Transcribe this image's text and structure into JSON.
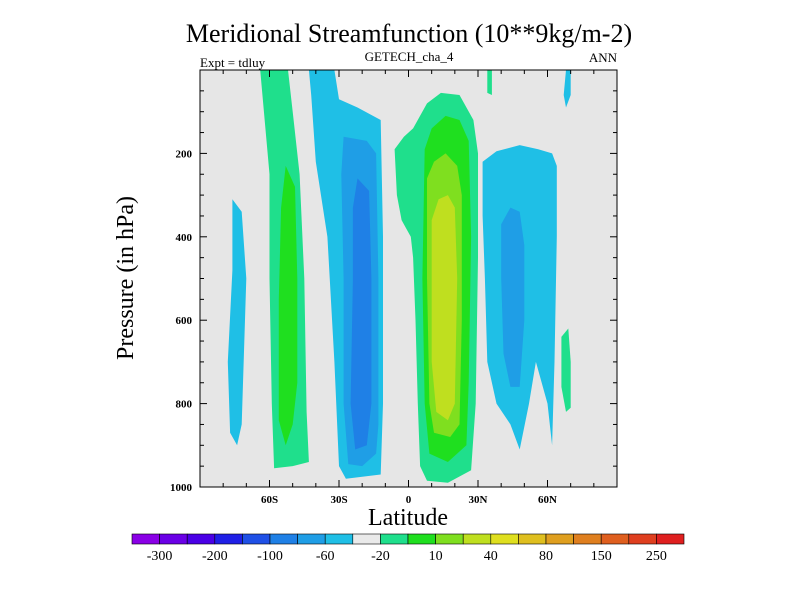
{
  "chart_data": {
    "type": "contour-filled",
    "title": "Meridional Streamfunction (10**9kg/m-2)",
    "subtitle": "GETECH_cha_4",
    "left_label": "Expt = tdluy",
    "right_label": "ANN",
    "xlabel": "Latitude",
    "ylabel": "Pressure (in hPa)",
    "xlim": [
      -90,
      90
    ],
    "ylim": [
      1000,
      0
    ],
    "x_ticks": [
      {
        "value": -60,
        "label": "60S"
      },
      {
        "value": -30,
        "label": "30S"
      },
      {
        "value": 0,
        "label": "0"
      },
      {
        "value": 30,
        "label": "30N"
      },
      {
        "value": 60,
        "label": "60N"
      }
    ],
    "y_ticks": [
      {
        "value": 200,
        "label": "200"
      },
      {
        "value": 400,
        "label": "400"
      },
      {
        "value": 600,
        "label": "600"
      },
      {
        "value": 800,
        "label": "800"
      },
      {
        "value": 1000,
        "label": "1000"
      }
    ],
    "background_color": "#e6e6e6",
    "colorbar": {
      "colors": [
        "#8a00e6",
        "#6a00e6",
        "#4a00e6",
        "#1f1fe6",
        "#1f50e6",
        "#1f80e6",
        "#1f9ee6",
        "#1fbfe6",
        "#eaeaea",
        "#1fdf8c",
        "#1fdf1f",
        "#7fdf1f",
        "#bfdf1f",
        "#dfdf1f",
        "#dfbf1f",
        "#df9f1f",
        "#df7f1f",
        "#df5f1f",
        "#df3f1f",
        "#df1f1f"
      ],
      "labels": [
        {
          "boundary": 1,
          "text": "-300"
        },
        {
          "boundary": 3,
          "text": "-200"
        },
        {
          "boundary": 5,
          "text": "-100"
        },
        {
          "boundary": 7,
          "text": "-60"
        },
        {
          "boundary": 9,
          "text": "-20"
        },
        {
          "boundary": 11,
          "text": "10"
        },
        {
          "boundary": 13,
          "text": "40"
        },
        {
          "boundary": 15,
          "text": "80"
        },
        {
          "boundary": 17,
          "text": "150"
        },
        {
          "boundary": 19,
          "text": "250"
        }
      ]
    },
    "regions": [
      {
        "name": "north-pole-cyan-thin",
        "color": "#1fbfe6",
        "pts": [
          [
            68,
            0
          ],
          [
            70,
            0
          ],
          [
            70,
            60
          ],
          [
            68,
            90
          ],
          [
            67,
            60
          ]
        ]
      },
      {
        "name": "north-pole-green-thin",
        "color": "#1fdf8c",
        "pts": [
          [
            34,
            0
          ],
          [
            36,
            0
          ],
          [
            36,
            60
          ],
          [
            34,
            55
          ]
        ]
      },
      {
        "name": "south-outer-cyan",
        "color": "#1fbfe6",
        "pts": [
          [
            -76,
            310
          ],
          [
            -72,
            340
          ],
          [
            -70,
            500
          ],
          [
            -72,
            850
          ],
          [
            -74,
            900
          ],
          [
            -77,
            870
          ],
          [
            -78,
            700
          ],
          [
            -76,
            480
          ]
        ]
      },
      {
        "name": "south-ferrel-green",
        "color": "#1fdf8c",
        "pts": [
          [
            -64,
            0
          ],
          [
            -52,
            0
          ],
          [
            -50,
            100
          ],
          [
            -47,
            250
          ],
          [
            -45,
            500
          ],
          [
            -44,
            820
          ],
          [
            -43,
            940
          ],
          [
            -50,
            950
          ],
          [
            -58,
            955
          ],
          [
            -59,
            800
          ],
          [
            -60,
            500
          ],
          [
            -60,
            250
          ]
        ]
      },
      {
        "name": "south-ferrel-core",
        "color": "#1fdf1f",
        "pts": [
          [
            -53,
            230
          ],
          [
            -49,
            280
          ],
          [
            -48,
            500
          ],
          [
            -48,
            750
          ],
          [
            -50,
            850
          ],
          [
            -53,
            900
          ],
          [
            -56,
            840
          ],
          [
            -56,
            550
          ],
          [
            -55,
            330
          ]
        ]
      },
      {
        "name": "south-hadley-cyan",
        "color": "#1fbfe6",
        "pts": [
          [
            -43,
            0
          ],
          [
            -32,
            0
          ],
          [
            -30,
            70
          ],
          [
            -22,
            90
          ],
          [
            -12,
            120
          ],
          [
            -11,
            400
          ],
          [
            -11,
            800
          ],
          [
            -12,
            970
          ],
          [
            -27,
            980
          ],
          [
            -30,
            950
          ],
          [
            -32,
            700
          ],
          [
            -35,
            400
          ],
          [
            -40,
            220
          ],
          [
            -42,
            60
          ]
        ]
      },
      {
        "name": "south-hadley-mid",
        "color": "#1f9ee6",
        "pts": [
          [
            -28,
            160
          ],
          [
            -18,
            170
          ],
          [
            -14,
            200
          ],
          [
            -13,
            500
          ],
          [
            -13,
            850
          ],
          [
            -14,
            920
          ],
          [
            -20,
            950
          ],
          [
            -26,
            945
          ],
          [
            -28,
            800
          ],
          [
            -28,
            500
          ],
          [
            -29,
            250
          ]
        ]
      },
      {
        "name": "south-hadley-core",
        "color": "#1f80e6",
        "pts": [
          [
            -22,
            260
          ],
          [
            -17,
            290
          ],
          [
            -16,
            500
          ],
          [
            -16,
            800
          ],
          [
            -18,
            900
          ],
          [
            -23,
            910
          ],
          [
            -25,
            800
          ],
          [
            -24,
            500
          ],
          [
            -24,
            330
          ]
        ]
      },
      {
        "name": "equator-green",
        "color": "#1fdf8c",
        "pts": [
          [
            -6,
            190
          ],
          [
            -2,
            160
          ],
          [
            2,
            140
          ],
          [
            8,
            80
          ],
          [
            14,
            55
          ],
          [
            22,
            60
          ],
          [
            28,
            120
          ],
          [
            30,
            200
          ],
          [
            30,
            450
          ],
          [
            29,
            800
          ],
          [
            27,
            960
          ],
          [
            17,
            990
          ],
          [
            8,
            985
          ],
          [
            5,
            950
          ],
          [
            4,
            800
          ],
          [
            3,
            600
          ],
          [
            2,
            450
          ],
          [
            1,
            400
          ],
          [
            -1,
            380
          ],
          [
            -3,
            360
          ],
          [
            -5,
            300
          ]
        ]
      },
      {
        "name": "north-hadley-green",
        "color": "#1fdf1f",
        "pts": [
          [
            7,
            190
          ],
          [
            10,
            140
          ],
          [
            16,
            110
          ],
          [
            22,
            120
          ],
          [
            26,
            170
          ],
          [
            27,
            400
          ],
          [
            26,
            750
          ],
          [
            25,
            900
          ],
          [
            17,
            940
          ],
          [
            9,
            920
          ],
          [
            7,
            800
          ],
          [
            6,
            500
          ]
        ]
      },
      {
        "name": "north-hadley-lime",
        "color": "#7fdf1f",
        "pts": [
          [
            8,
            260
          ],
          [
            11,
            220
          ],
          [
            16,
            200
          ],
          [
            21,
            230
          ],
          [
            23,
            300
          ],
          [
            23,
            600
          ],
          [
            22,
            850
          ],
          [
            18,
            880
          ],
          [
            11,
            870
          ],
          [
            9,
            800
          ],
          [
            8,
            500
          ]
        ]
      },
      {
        "name": "north-hadley-core",
        "color": "#bfdf1f",
        "pts": [
          [
            10,
            360
          ],
          [
            13,
            310
          ],
          [
            17,
            300
          ],
          [
            20,
            330
          ],
          [
            21,
            500
          ],
          [
            20,
            800
          ],
          [
            17,
            840
          ],
          [
            12,
            820
          ],
          [
            10,
            700
          ]
        ]
      },
      {
        "name": "north-ferrel-cyan",
        "color": "#1fbfe6",
        "pts": [
          [
            32,
            220
          ],
          [
            38,
            195
          ],
          [
            48,
            180
          ],
          [
            56,
            190
          ],
          [
            62,
            200
          ],
          [
            64,
            230
          ],
          [
            64,
            400
          ],
          [
            63,
            700
          ],
          [
            62,
            900
          ],
          [
            60,
            800
          ],
          [
            55,
            700
          ],
          [
            52,
            800
          ],
          [
            48,
            910
          ],
          [
            44,
            850
          ],
          [
            38,
            800
          ],
          [
            34,
            700
          ],
          [
            33,
            500
          ],
          [
            32,
            350
          ]
        ]
      },
      {
        "name": "north-ferrel-mid",
        "color": "#1f9ee6",
        "pts": [
          [
            40,
            370
          ],
          [
            44,
            330
          ],
          [
            48,
            340
          ],
          [
            50,
            420
          ],
          [
            50,
            600
          ],
          [
            48,
            760
          ],
          [
            44,
            760
          ],
          [
            41,
            680
          ],
          [
            40,
            500
          ]
        ]
      },
      {
        "name": "north-outer-green",
        "color": "#1fdf8c",
        "pts": [
          [
            66,
            640
          ],
          [
            69,
            620
          ],
          [
            70,
            700
          ],
          [
            70,
            810
          ],
          [
            68,
            820
          ],
          [
            66,
            760
          ]
        ]
      }
    ]
  }
}
